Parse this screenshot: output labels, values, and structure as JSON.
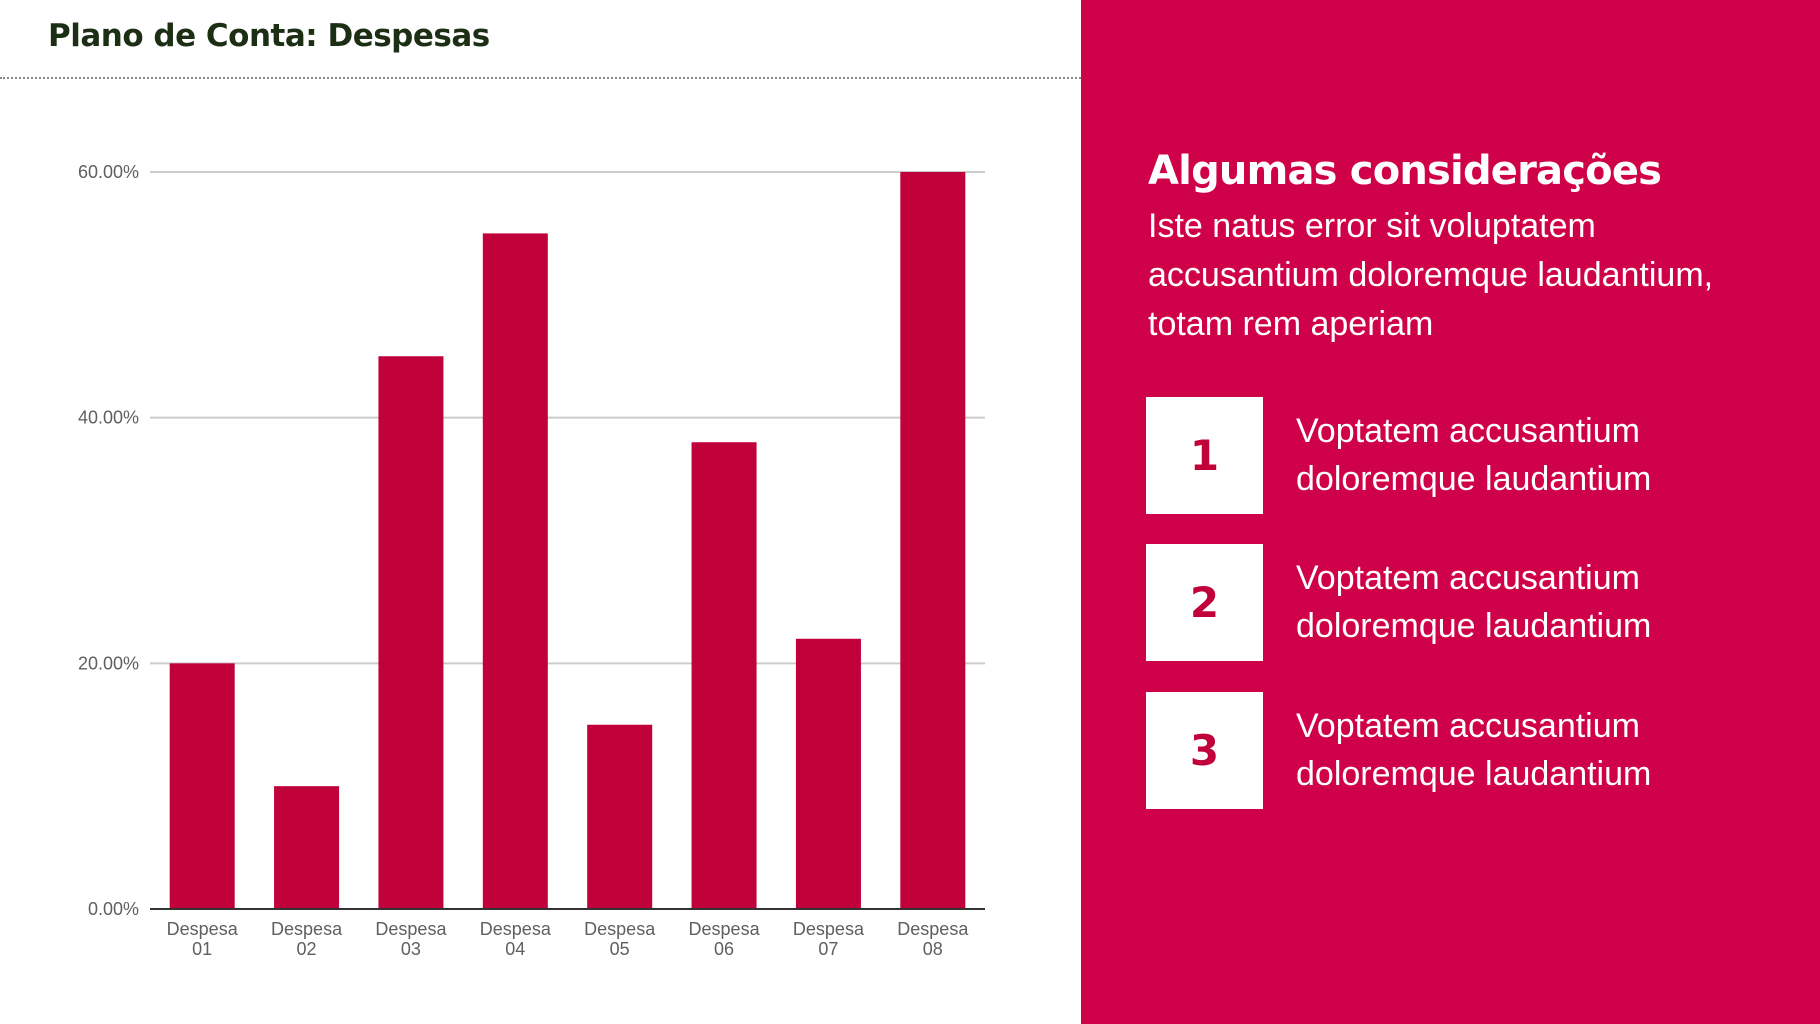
{
  "page": {
    "title": "Plano de Conta: Despesas"
  },
  "chart_data": {
    "type": "bar",
    "categories": [
      [
        "Despesa",
        "01"
      ],
      [
        "Despesa",
        "02"
      ],
      [
        "Despesa",
        "03"
      ],
      [
        "Despesa",
        "04"
      ],
      [
        "Despesa",
        "05"
      ],
      [
        "Despesa",
        "06"
      ],
      [
        "Despesa",
        "07"
      ],
      [
        "Despesa",
        "08"
      ]
    ],
    "values": [
      20,
      10,
      45,
      55,
      15,
      38,
      22,
      60
    ],
    "ylim": [
      0,
      60
    ],
    "yticks": [
      0,
      20,
      40,
      60
    ],
    "ytick_labels": [
      "0.00%",
      "20.00%",
      "40.00%",
      "60.00%"
    ],
    "grid": true,
    "bar_color": "#c0013a"
  },
  "panel": {
    "heading": "Algumas considerações",
    "intro": "Iste natus error sit voluptatem accusantium doloremque laudantium, totam rem aperiam",
    "items": [
      {
        "number": "1",
        "text": "Voptatem accusantium doloremque laudantium"
      },
      {
        "number": "2",
        "text": "Voptatem accusantium doloremque laudantium"
      },
      {
        "number": "3",
        "text": "Voptatem accusantium doloremque laudantium"
      }
    ],
    "background": "#cf0148"
  }
}
